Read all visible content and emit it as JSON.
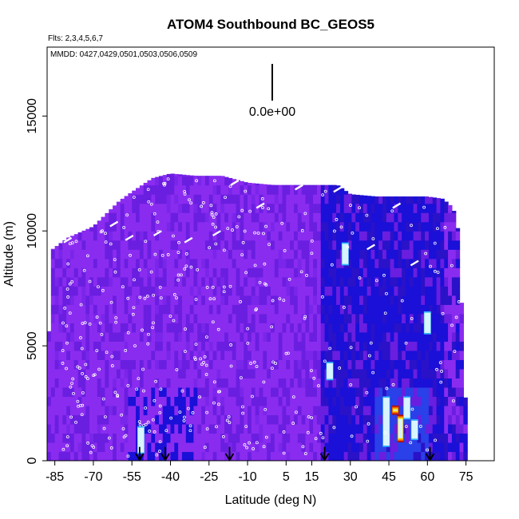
{
  "chart_data": {
    "type": "heatmap",
    "title": "ATOM4 Southbound BC_GEOS5",
    "subtitle_flights": "Flts: 2,3,4,5,6,7",
    "subtitle_dates": "MMDD: 0427,0429,0501,0503,0506,0509",
    "xlabel": "Latitude (deg N)",
    "ylabel": "Altitude (m)",
    "xlim": [
      -88,
      86
    ],
    "ylim": [
      0,
      18000
    ],
    "x_ticks": [
      -85,
      -70,
      -55,
      -40,
      -25,
      -10,
      5,
      15,
      30,
      45,
      60,
      75
    ],
    "x_tick_labels": [
      "-85",
      "-70",
      "-55",
      "-40",
      "-25",
      "-10",
      "5",
      "15",
      "30",
      "45",
      "60",
      "75"
    ],
    "y_ticks": [
      0,
      5000,
      10000,
      15000
    ],
    "y_tick_labels": [
      "0",
      "5000",
      "10000",
      "15000"
    ],
    "scale_bar_label": "0.0e+00",
    "profile_arrows_lat": [
      -52,
      -42,
      -17,
      20,
      61
    ],
    "curtain_top_altitude": [
      [
        -88,
        3500
      ],
      [
        -86,
        9200
      ],
      [
        -80,
        9700
      ],
      [
        -70,
        10200
      ],
      [
        -60,
        11300
      ],
      [
        -55,
        11700
      ],
      [
        -47,
        12300
      ],
      [
        -40,
        12500
      ],
      [
        -30,
        12400
      ],
      [
        -20,
        12400
      ],
      [
        -10,
        12100
      ],
      [
        0,
        12000
      ],
      [
        10,
        12000
      ],
      [
        20,
        12000
      ],
      [
        25,
        12000
      ],
      [
        30,
        11600
      ],
      [
        40,
        11500
      ],
      [
        50,
        11500
      ],
      [
        60,
        11500
      ],
      [
        66,
        11400
      ],
      [
        70,
        11000
      ],
      [
        72,
        10000
      ],
      [
        74,
        5000
      ],
      [
        75,
        2000
      ]
    ],
    "concentration_hotspots": [
      {
        "lat": 49.5,
        "alt_min": 800,
        "alt_max": 2000,
        "level": "high"
      },
      {
        "lat": 47.5,
        "alt_min": 2000,
        "alt_max": 2400,
        "level": "high"
      },
      {
        "lat": 55.0,
        "alt_min": 900,
        "alt_max": 1800,
        "level": "medium"
      },
      {
        "lat": 44.0,
        "alt_min": 600,
        "alt_max": 2800,
        "level": "medium"
      },
      {
        "lat": 52.0,
        "alt_min": 1800,
        "alt_max": 2800,
        "level": "medium"
      },
      {
        "lat": -51.5,
        "alt_min": 300,
        "alt_max": 1500,
        "level": "medium"
      },
      {
        "lat": 28.0,
        "alt_min": 8500,
        "alt_max": 9500,
        "level": "medium"
      },
      {
        "lat": 22.0,
        "alt_min": 3500,
        "alt_max": 4300,
        "level": "medium"
      },
      {
        "lat": 60.0,
        "alt_min": 5500,
        "alt_max": 6500,
        "level": "medium"
      }
    ],
    "colors": {
      "background_field": "#8a2cf0",
      "low": "#6a1ee0",
      "blue": "#1a10d8",
      "cyan": "#33b4ff",
      "light": "#d8f4ff",
      "yellow": "#f7d000",
      "orange": "#ef6a00",
      "red": "#b50c00",
      "markers": "#ffffff"
    }
  }
}
